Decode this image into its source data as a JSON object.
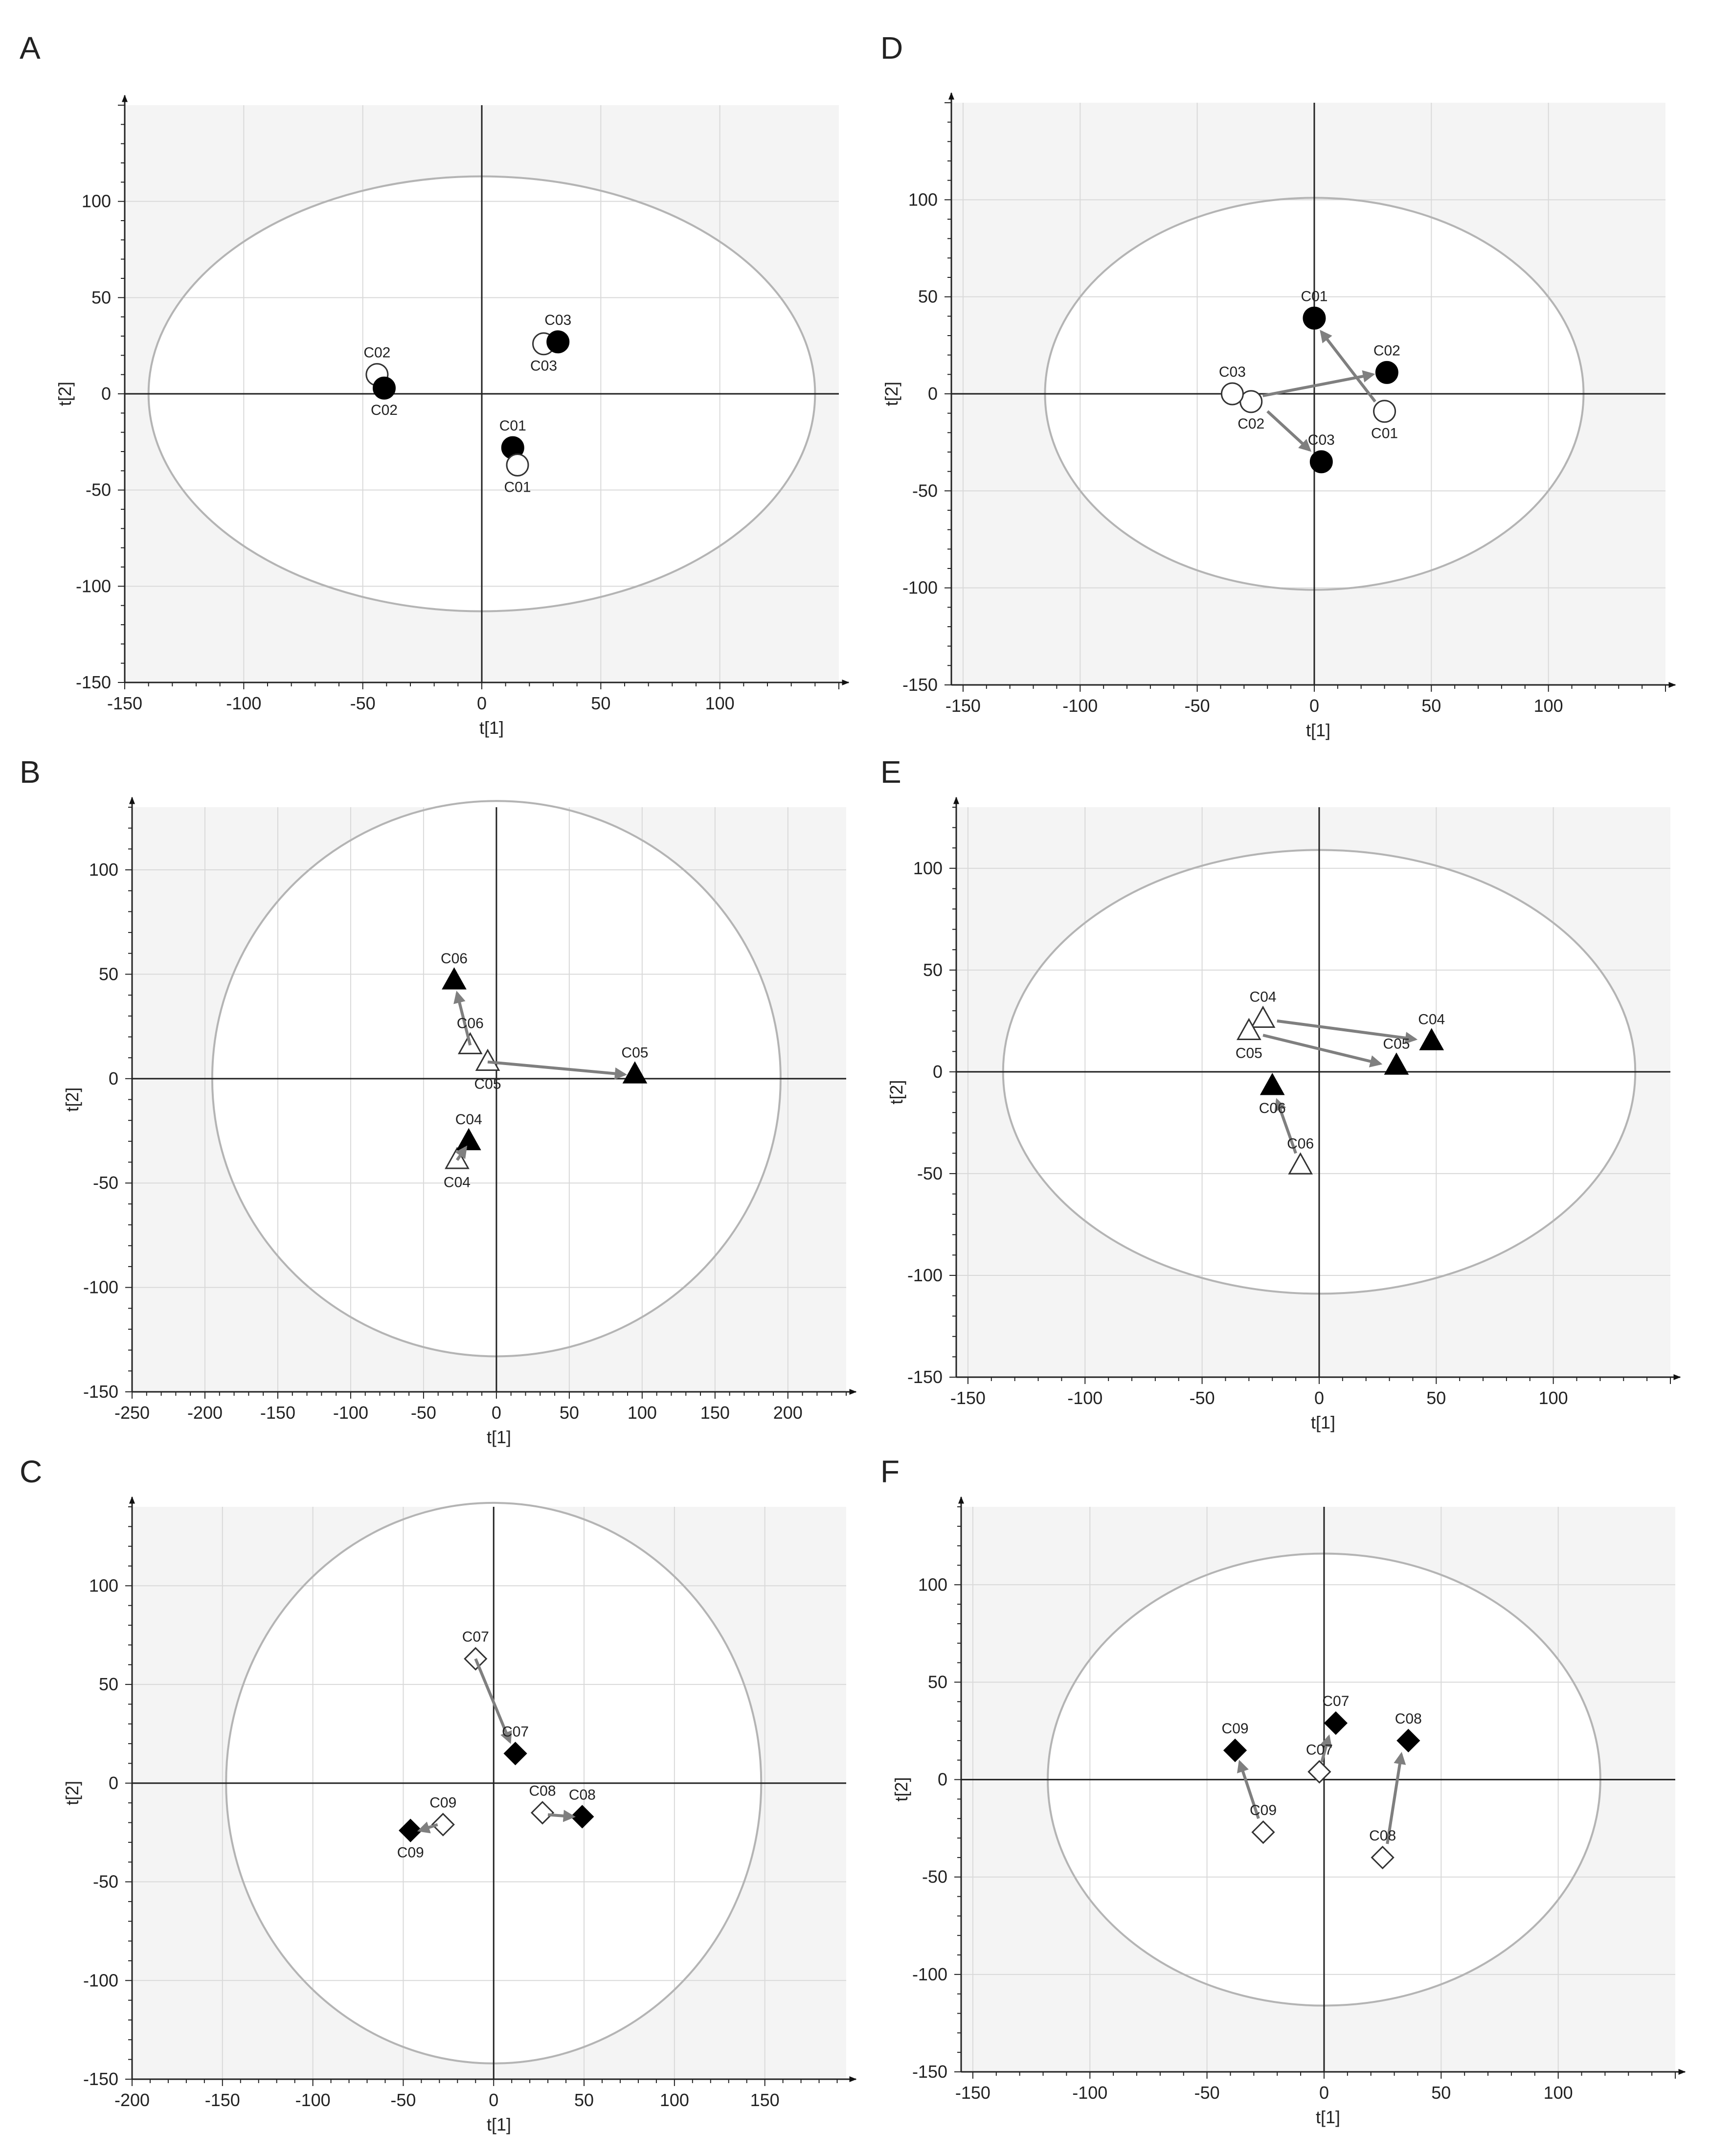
{
  "colors": {
    "plot_bg": "#f4f4f4",
    "ellipse_bg": "#ffffff",
    "grid": "#d9d9d9",
    "ellipse": "#b4b4b4",
    "axis": "#222222",
    "arrow": "#7f7f7f",
    "marker_filled": "#000000",
    "marker_open": "#ffffff"
  },
  "chart_data": [
    {
      "panel": "A",
      "type": "scatter",
      "xlabel": "t[1]",
      "ylabel": "t[2]",
      "xlim": [
        -150,
        150
      ],
      "ylim": [
        -150,
        150
      ],
      "xticks": [
        -150,
        -100,
        -50,
        0,
        50,
        100
      ],
      "yticks": [
        -150,
        -100,
        -50,
        0,
        50,
        100
      ],
      "ellipse": {
        "rx": 140,
        "ry": 113
      },
      "grid": true,
      "marker": "circle",
      "points": [
        {
          "label": "C01",
          "x": 13,
          "y": -28,
          "filled": true,
          "label_pos": "above"
        },
        {
          "label": "C01",
          "x": 15,
          "y": -37,
          "filled": false,
          "label_pos": "below"
        },
        {
          "label": "C02",
          "x": -44,
          "y": 10,
          "filled": false,
          "label_pos": "above"
        },
        {
          "label": "C02",
          "x": -41,
          "y": 3,
          "filled": true,
          "label_pos": "below"
        },
        {
          "label": "C03",
          "x": 26,
          "y": 26,
          "filled": false,
          "label_pos": "below"
        },
        {
          "label": "C03",
          "x": 32,
          "y": 27,
          "filled": true,
          "label_pos": "above"
        }
      ],
      "arrows": []
    },
    {
      "panel": "B",
      "type": "scatter",
      "xlabel": "t[1]",
      "ylabel": "t[2]",
      "xlim": [
        -250,
        240
      ],
      "ylim": [
        -150,
        130
      ],
      "xticks": [
        -250,
        -200,
        -150,
        -100,
        -50,
        0,
        50,
        100,
        150,
        200
      ],
      "yticks": [
        -150,
        -100,
        -50,
        0,
        50,
        100
      ],
      "ellipse": {
        "rx": 195,
        "ry": 133
      },
      "grid": true,
      "marker": "triangle",
      "points": [
        {
          "label": "C04",
          "x": -27,
          "y": -39,
          "filled": false,
          "label_pos": "below"
        },
        {
          "label": "C04",
          "x": -19,
          "y": -30,
          "filled": true,
          "label_pos": "above"
        },
        {
          "label": "C05",
          "x": -6,
          "y": 8,
          "filled": false,
          "label_pos": "below"
        },
        {
          "label": "C05",
          "x": 95,
          "y": 2,
          "filled": true,
          "label_pos": "above"
        },
        {
          "label": "C06",
          "x": -18,
          "y": 16,
          "filled": false,
          "label_pos": "above"
        },
        {
          "label": "C06",
          "x": -29,
          "y": 47,
          "filled": true,
          "label_pos": "above"
        }
      ],
      "arrows": [
        {
          "from": [
            -6,
            8
          ],
          "to": [
            88,
            2
          ]
        },
        {
          "from": [
            -18,
            16
          ],
          "to": [
            -27,
            41
          ]
        },
        {
          "from": [
            -27,
            -39
          ],
          "to": [
            -21,
            -33
          ]
        }
      ]
    },
    {
      "panel": "C",
      "type": "scatter",
      "xlabel": "t[1]",
      "ylabel": "t[2]",
      "xlim": [
        -200,
        195
      ],
      "ylim": [
        -150,
        140
      ],
      "xticks": [
        -200,
        -150,
        -100,
        -50,
        0,
        50,
        100,
        150
      ],
      "yticks": [
        -150,
        -100,
        -50,
        0,
        50,
        100
      ],
      "ellipse": {
        "rx": 148,
        "ry": 142
      },
      "grid": true,
      "marker": "diamond",
      "points": [
        {
          "label": "C07",
          "x": -10,
          "y": 63,
          "filled": false,
          "label_pos": "above"
        },
        {
          "label": "C07",
          "x": 12,
          "y": 15,
          "filled": true,
          "label_pos": "above"
        },
        {
          "label": "C08",
          "x": 27,
          "y": -15,
          "filled": false,
          "label_pos": "above"
        },
        {
          "label": "C08",
          "x": 49,
          "y": -17,
          "filled": true,
          "label_pos": "above"
        },
        {
          "label": "C09",
          "x": -28,
          "y": -21,
          "filled": false,
          "label_pos": "above"
        },
        {
          "label": "C09",
          "x": -46,
          "y": -24,
          "filled": true,
          "label_pos": "below"
        }
      ],
      "arrows": [
        {
          "from": [
            -10,
            63
          ],
          "to": [
            9,
            21
          ]
        },
        {
          "from": [
            30,
            -16
          ],
          "to": [
            44,
            -17
          ]
        },
        {
          "from": [
            -31,
            -21
          ],
          "to": [
            -41,
            -24
          ]
        }
      ]
    },
    {
      "panel": "D",
      "type": "scatter",
      "xlabel": "t[1]",
      "ylabel": "t[2]",
      "xlim": [
        -155,
        150
      ],
      "ylim": [
        -150,
        150
      ],
      "xticks": [
        -150,
        -100,
        -50,
        0,
        50,
        100
      ],
      "yticks": [
        -150,
        -100,
        -50,
        0,
        50,
        100
      ],
      "ellipse": {
        "rx": 115,
        "ry": 101
      },
      "grid": true,
      "marker": "circle",
      "points": [
        {
          "label": "C01",
          "x": 0,
          "y": 39,
          "filled": true,
          "label_pos": "above"
        },
        {
          "label": "C01",
          "x": 30,
          "y": -9,
          "filled": false,
          "label_pos": "below"
        },
        {
          "label": "C02",
          "x": 31,
          "y": 11,
          "filled": true,
          "label_pos": "above"
        },
        {
          "label": "C02",
          "x": -27,
          "y": -4,
          "filled": false,
          "label_pos": "below"
        },
        {
          "label": "C03",
          "x": -35,
          "y": 0,
          "filled": false,
          "label_pos": "above"
        },
        {
          "label": "C03",
          "x": 3,
          "y": -35,
          "filled": true,
          "label_pos": "above"
        }
      ],
      "arrows": [
        {
          "from": [
            26,
            -4
          ],
          "to": [
            3,
            32
          ]
        },
        {
          "from": [
            -22,
            -1
          ],
          "to": [
            25,
            10
          ]
        },
        {
          "from": [
            -20,
            -9
          ],
          "to": [
            -2,
            -29
          ]
        }
      ]
    },
    {
      "panel": "E",
      "type": "scatter",
      "xlabel": "t[1]",
      "ylabel": "t[2]",
      "xlim": [
        -155,
        150
      ],
      "ylim": [
        -150,
        130
      ],
      "xticks": [
        -150,
        -100,
        -50,
        0,
        50,
        100
      ],
      "yticks": [
        -150,
        -100,
        -50,
        0,
        50,
        100
      ],
      "ellipse": {
        "rx": 135,
        "ry": 109
      },
      "grid": true,
      "marker": "triangle",
      "points": [
        {
          "label": "C04",
          "x": -24,
          "y": 26,
          "filled": false,
          "label_pos": "above"
        },
        {
          "label": "C04",
          "x": 48,
          "y": 15,
          "filled": true,
          "label_pos": "above"
        },
        {
          "label": "C05",
          "x": -30,
          "y": 20,
          "filled": false,
          "label_pos": "below"
        },
        {
          "label": "C05",
          "x": 33,
          "y": 3,
          "filled": true,
          "label_pos": "above"
        },
        {
          "label": "C06",
          "x": -8,
          "y": -46,
          "filled": false,
          "label_pos": "above"
        },
        {
          "label": "C06",
          "x": -20,
          "y": -7,
          "filled": true,
          "label_pos": "below"
        }
      ],
      "arrows": [
        {
          "from": [
            -18,
            25
          ],
          "to": [
            41,
            16
          ]
        },
        {
          "from": [
            -24,
            18
          ],
          "to": [
            26,
            4
          ]
        },
        {
          "from": [
            -10,
            -40
          ],
          "to": [
            -18,
            -14
          ]
        }
      ]
    },
    {
      "panel": "F",
      "type": "scatter",
      "xlabel": "t[1]",
      "ylabel": "t[2]",
      "xlim": [
        -155,
        150
      ],
      "ylim": [
        -150,
        140
      ],
      "xticks": [
        -150,
        -100,
        -50,
        0,
        50,
        100
      ],
      "yticks": [
        -150,
        -100,
        -50,
        0,
        50,
        100
      ],
      "ellipse": {
        "rx": 118,
        "ry": 116
      },
      "grid": true,
      "marker": "diamond",
      "points": [
        {
          "label": "C07",
          "x": -2,
          "y": 4,
          "filled": false,
          "label_pos": "above"
        },
        {
          "label": "C07",
          "x": 5,
          "y": 29,
          "filled": true,
          "label_pos": "above"
        },
        {
          "label": "C08",
          "x": 25,
          "y": -40,
          "filled": false,
          "label_pos": "above"
        },
        {
          "label": "C08",
          "x": 36,
          "y": 20,
          "filled": true,
          "label_pos": "above"
        },
        {
          "label": "C09",
          "x": -26,
          "y": -27,
          "filled": false,
          "label_pos": "above"
        },
        {
          "label": "C09",
          "x": -38,
          "y": 15,
          "filled": true,
          "label_pos": "above"
        }
      ],
      "arrows": [
        {
          "from": [
            -1,
            9
          ],
          "to": [
            2,
            22
          ]
        },
        {
          "from": [
            27,
            -33
          ],
          "to": [
            33,
            13
          ]
        },
        {
          "from": [
            -28,
            -20
          ],
          "to": [
            -36,
            9
          ]
        }
      ]
    }
  ]
}
